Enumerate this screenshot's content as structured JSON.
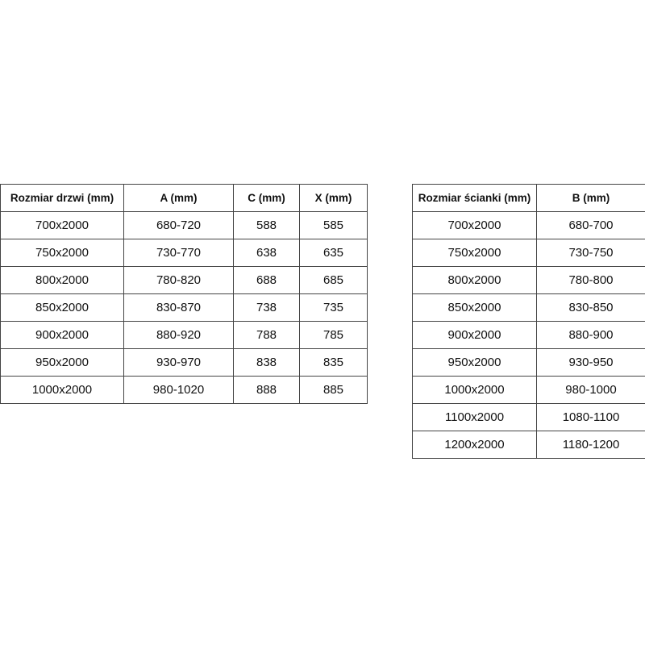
{
  "doors_table": {
    "headers": [
      "Rozmiar drzwi (mm)",
      "A (mm)",
      "C (mm)",
      "X (mm)"
    ],
    "rows": [
      [
        "700x2000",
        "680-720",
        "588",
        "585"
      ],
      [
        "750x2000",
        "730-770",
        "638",
        "635"
      ],
      [
        "800x2000",
        "780-820",
        "688",
        "685"
      ],
      [
        "850x2000",
        "830-870",
        "738",
        "735"
      ],
      [
        "900x2000",
        "880-920",
        "788",
        "785"
      ],
      [
        "950x2000",
        "930-970",
        "838",
        "835"
      ],
      [
        "1000x2000",
        "980-1020",
        "888",
        "885"
      ]
    ]
  },
  "wall_table": {
    "headers": [
      "Rozmiar ścianki (mm)",
      "B (mm)"
    ],
    "rows": [
      [
        "700x2000",
        "680-700"
      ],
      [
        "750x2000",
        "730-750"
      ],
      [
        "800x2000",
        "780-800"
      ],
      [
        "850x2000",
        "830-850"
      ],
      [
        "900x2000",
        "880-900"
      ],
      [
        "950x2000",
        "930-950"
      ],
      [
        "1000x2000",
        "980-1000"
      ],
      [
        "1100x2000",
        "1080-1100"
      ],
      [
        "1200x2000",
        "1180-1200"
      ]
    ]
  }
}
